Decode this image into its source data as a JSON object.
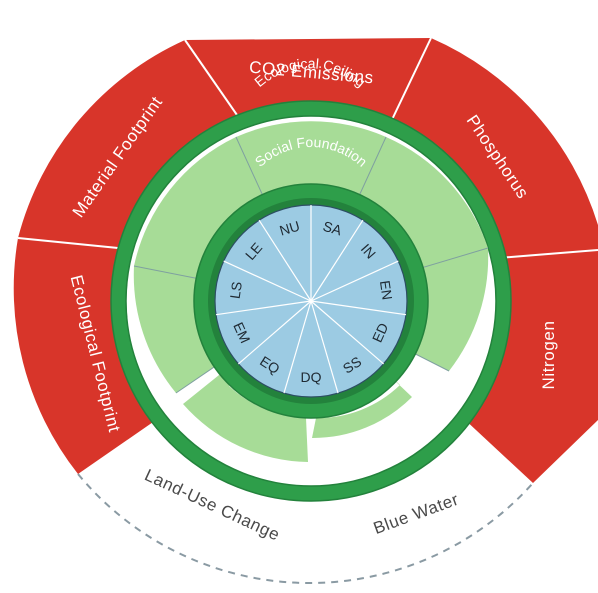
{
  "ceiling": {
    "ring_label": "Ecological Ceiling",
    "boundaries": [
      {
        "id": "co2",
        "label": "CO2 Emissions",
        "overshoot": true
      },
      {
        "id": "phosphorus",
        "label": "Phosphorus",
        "overshoot": true
      },
      {
        "id": "nitrogen",
        "label": "Nitrogen",
        "overshoot": true
      },
      {
        "id": "blue-water",
        "label": "Blue Water",
        "overshoot": false
      },
      {
        "id": "land-use",
        "label": "Land-Use Change",
        "overshoot": false
      },
      {
        "id": "ecological-footprint",
        "label": "Ecological Footprint",
        "overshoot": true
      },
      {
        "id": "material-footprint",
        "label": "Material Footprint",
        "overshoot": true
      }
    ]
  },
  "foundation": {
    "ring_label": "Social Foundation",
    "indicators": [
      "SA",
      "IN",
      "EN",
      "ED",
      "SS",
      "DQ",
      "EQ",
      "EM",
      "LS",
      "LE",
      "NU"
    ]
  },
  "colors": {
    "overshoot_red": "#d8352a",
    "safe_green_light": "#a7dc97",
    "ring_green": "#2e9e4a",
    "ring_green_dark": "#23823c",
    "core_blue": "#9ccbe3",
    "dashed_gray": "#8a9aa3"
  }
}
